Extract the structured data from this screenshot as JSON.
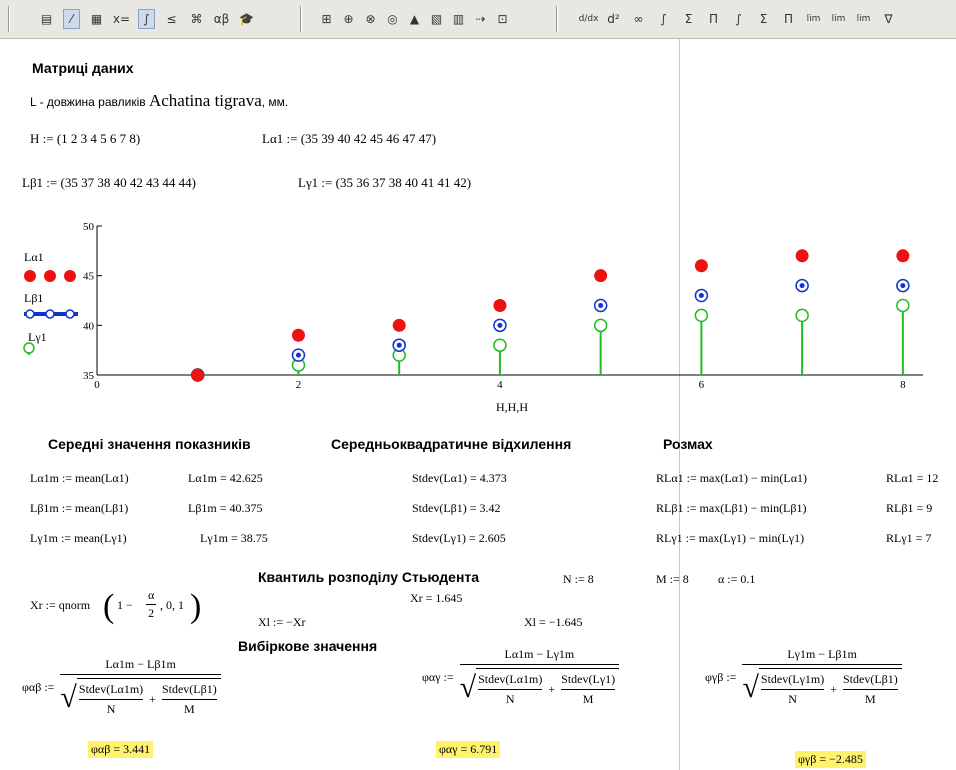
{
  "toolbar": {
    "group1": [
      "calculator-icon",
      "graph-icon",
      "matrix-icon",
      "evaluation-icon",
      "calculus-icon",
      "boolean-icon",
      "programming-icon",
      "greek-icon",
      "symbolic-icon"
    ],
    "group2": [
      "xy-plot-icon",
      "polar-plot-icon",
      "surface-plot-icon",
      "contour-plot-icon",
      "3d-bar-icon",
      "scatter-3d-icon",
      "vector-field-icon",
      "trace-icon",
      "zoom-icon"
    ],
    "group3": [
      "integral-icon",
      "derivative-icon",
      "infinity-icon",
      "summation-icon",
      "product-icon",
      "limit-icon",
      "range-icon"
    ],
    "glyphs1": [
      "▤",
      "⁄",
      "▦",
      "x=",
      "∫",
      "≤",
      "⌘",
      "αβ",
      "🎓"
    ],
    "glyphs2": [
      "⊞",
      "⊕",
      "⊗",
      "◎",
      "▲",
      "▧",
      "▥",
      "⇢",
      "⊡"
    ],
    "glyphs3": [
      "d/dx",
      "d²",
      "∞",
      "∫",
      "Σ",
      "Π",
      "∫",
      "Σ",
      "Π",
      "lim",
      "lim",
      "lim",
      "∇"
    ]
  },
  "section_title": "Матриці даних",
  "description": {
    "prefix": "L - довжина равликів ",
    "species": "Achatina tigrava",
    "suffix": ", мм."
  },
  "defs": {
    "H": "H := (1  2  3  4  5  6  7  8)",
    "La1": "Lα1 := (35  39  40  42  45  46  47  47)",
    "Lb1": "Lβ1 := (35  37  38  40  42  43  44  44)",
    "Lg1": "Lγ1 := (35  36  37  38  40  41  41  42)"
  },
  "chart_data": {
    "type": "scatter",
    "x": [
      1,
      2,
      3,
      4,
      5,
      6,
      7,
      8
    ],
    "series": [
      {
        "name": "Lα1",
        "values": [
          35,
          39,
          40,
          42,
          45,
          46,
          47,
          47
        ],
        "color": "#ee1111"
      },
      {
        "name": "Lβ1",
        "values": [
          35,
          37,
          38,
          40,
          42,
          43,
          44,
          44
        ],
        "color": "#1133cc"
      },
      {
        "name": "Lγ1",
        "values": [
          35,
          36,
          37,
          38,
          40,
          41,
          41,
          42
        ],
        "color": "#22bb22"
      }
    ],
    "xlim": [
      0,
      8.2
    ],
    "ylim": [
      35,
      50
    ],
    "xticks": [
      "0",
      "2",
      "4",
      "6",
      "8"
    ],
    "yticks": [
      "35",
      "40",
      "45",
      "50"
    ],
    "xlabel": "H,H,H"
  },
  "stats": {
    "mean_title": "Середні значення показників",
    "std_title": "Середньоквадратичне відхилення",
    "range_title": "Розмах",
    "mean_defs": [
      "Lα1m := mean(Lα1)",
      "Lβ1m := mean(Lβ1)",
      "Lγ1m := mean(Lγ1)"
    ],
    "mean_vals": [
      "Lα1m = 42.625",
      "Lβ1m = 40.375",
      "Lγ1m = 38.75"
    ],
    "std_vals": [
      "Stdev(Lα1) = 4.373",
      "Stdev(Lβ1) = 3.42",
      "Stdev(Lγ1) = 2.605"
    ],
    "range_defs": [
      "RLα1 := max(Lα1) − min(Lα1)",
      "RLβ1 := max(Lβ1) − min(Lβ1)",
      "RLγ1 := max(Lγ1) − min(Lγ1)"
    ],
    "range_vals": [
      "RLα1 = 12",
      "RLβ1 = 9",
      "RLγ1 = 7"
    ]
  },
  "student": {
    "title": "Квантиль розподілу Стьюдента",
    "xr_def_prefix": "Xr := qnorm",
    "xr_def_num": "α",
    "xr_def_den": "2",
    "xr_def_left": "1 −",
    "xr_def_right": ", 0, 1",
    "N_def": "N := 8",
    "M_def": "M := 8",
    "alpha_def": "α := 0.1",
    "xr_val": "Xr = 1.645",
    "xl_def": "Xl := −Xr",
    "xl_val": "Xl = −1.645"
  },
  "sample": {
    "title": "Вибіркове значення",
    "formulas": [
      {
        "lhs": "φαβ :=",
        "num": "Lα1m − Lβ1m",
        "s1": "Stdev(Lα1m)",
        "d1": "N",
        "s2": "Stdev(Lβ1)",
        "d2": "M",
        "result": "φαβ = 3.441"
      },
      {
        "lhs": "φαγ :=",
        "num": "Lα1m − Lγ1m",
        "s1": "Stdev(Lα1m)",
        "d1": "N",
        "s2": "Stdev(Lγ1)",
        "d2": "M",
        "result": "φαγ = 6.791"
      },
      {
        "lhs": "φγβ :=",
        "num": "Lγ1m − Lβ1m",
        "s1": "Stdev(Lγ1m)",
        "d1": "N",
        "s2": "Stdev(Lβ1)",
        "d2": "M",
        "result": "φγβ = −2.485"
      }
    ]
  }
}
